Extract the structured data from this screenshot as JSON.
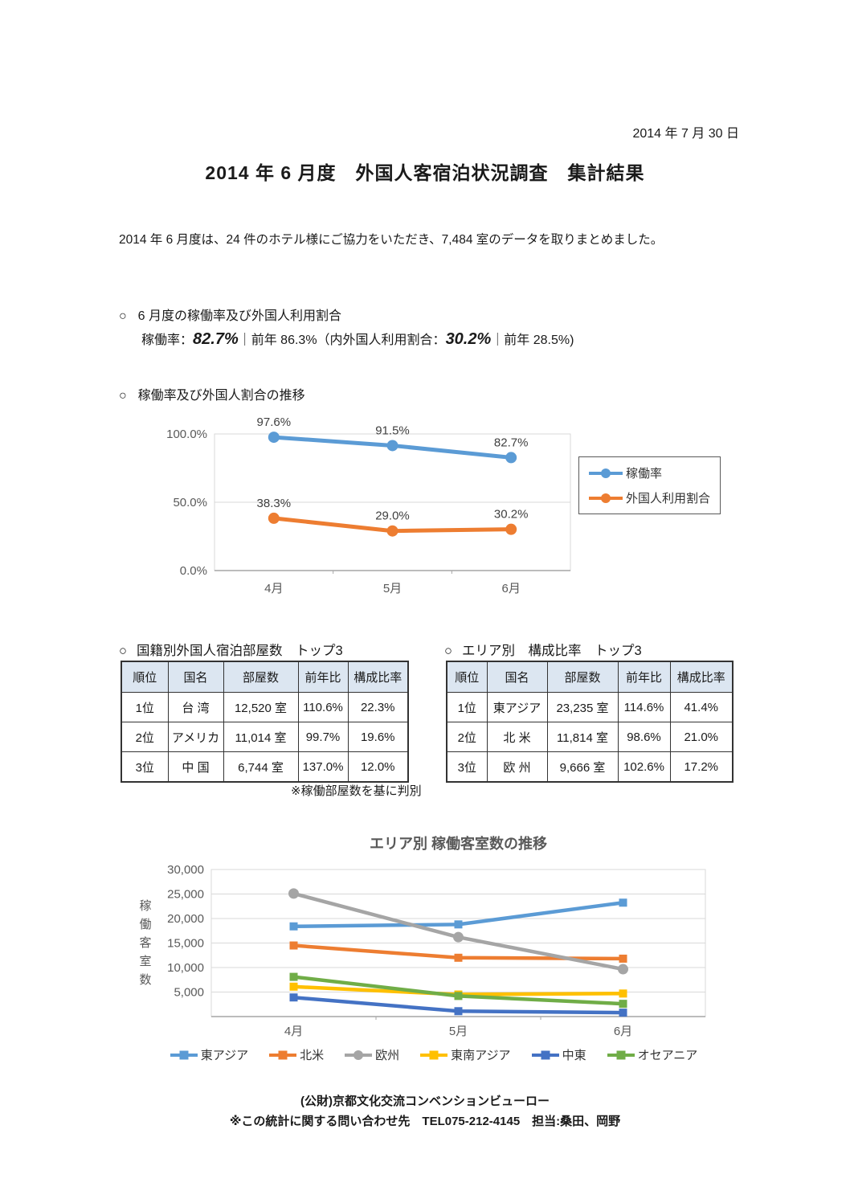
{
  "page": {
    "date": "2014 年 7 月 30 日",
    "title": "2014 年 6 月度　外国人客宿泊状況調査　集計結果",
    "intro": "2014 年 6 月度は、24 件のホテル様にご協力をいただき、7,484 室のデータを取りまとめました。"
  },
  "sections": {
    "occupancy": {
      "bullet": "○",
      "heading": "6 月度の稼働率及び外国人利用割合"
    },
    "trend": {
      "bullet": "○",
      "heading": "稼働率及び外国人割合の推移"
    },
    "nationality": {
      "bullet": "○",
      "heading": "国籍別外国人宿泊部屋数　トップ3"
    },
    "area": {
      "bullet": "○",
      "heading": "エリア別　構成比率　トップ3"
    }
  },
  "rate_line": {
    "label": "稼働率：",
    "current": "82.7%",
    "mid": "｜前年 86.3%（内外国人利用割合：",
    "foreign": "30.2%",
    "tail": "｜前年 28.5%)"
  },
  "tables": {
    "nationality": {
      "headers": [
        "順位",
        "国名",
        "部屋数",
        "前年比",
        "構成比率"
      ],
      "rows": [
        [
          "1位",
          "台 湾",
          "12,520 室",
          "110.6%",
          "22.3%"
        ],
        [
          "2位",
          "アメリカ",
          "11,014 室",
          "99.7%",
          "19.6%"
        ],
        [
          "3位",
          "中 国",
          "6,744 室",
          "137.0%",
          "12.0%"
        ]
      ],
      "note": "※稼働部屋数を基に判別"
    },
    "area": {
      "headers": [
        "順位",
        "国名",
        "部屋数",
        "前年比",
        "構成比率"
      ],
      "rows": [
        [
          "1位",
          "東アジア",
          "23,235 室",
          "114.6%",
          "41.4%"
        ],
        [
          "2位",
          "北 米",
          "11,814 室",
          "98.6%",
          "21.0%"
        ],
        [
          "3位",
          "欧 州",
          "9,666 室",
          "102.6%",
          "17.2%"
        ]
      ]
    }
  },
  "chart_data": [
    {
      "type": "line",
      "title": "",
      "categories": [
        "4月",
        "5月",
        "6月"
      ],
      "yticks": [
        "100.0%",
        "50.0%",
        "0.0%"
      ],
      "ylim": [
        0,
        100
      ],
      "grid": true,
      "legend_position": "right",
      "series": [
        {
          "name": "稼働率",
          "color": "#5B9BD5",
          "marker": "circle",
          "values": [
            97.6,
            91.5,
            82.7
          ],
          "labels": [
            "97.6%",
            "91.5%",
            "82.7%"
          ]
        },
        {
          "name": "外国人利用割合",
          "color": "#ED7D31",
          "marker": "circle",
          "values": [
            38.3,
            29.0,
            30.2
          ],
          "labels": [
            "38.3%",
            "29.0%",
            "30.2%"
          ]
        }
      ]
    },
    {
      "type": "line",
      "title": "エリア別 稼働客室数の推移",
      "ylabel": "稼働客室数",
      "categories": [
        "4月",
        "5月",
        "6月"
      ],
      "yticks": [
        "30,000",
        "25,000",
        "20,000",
        "15,000",
        "10,000",
        "5,000"
      ],
      "ylim": [
        0,
        30000
      ],
      "grid": true,
      "legend_position": "bottom",
      "series": [
        {
          "name": "東アジア",
          "color": "#5B9BD5",
          "marker": "square",
          "values": [
            18400,
            18800,
            23235
          ]
        },
        {
          "name": "北米",
          "color": "#ED7D31",
          "marker": "square",
          "values": [
            14500,
            12000,
            11814
          ]
        },
        {
          "name": "欧州",
          "color": "#A5A5A5",
          "marker": "circle",
          "values": [
            25100,
            16200,
            9666
          ]
        },
        {
          "name": "東南アジア",
          "color": "#FFC000",
          "marker": "square",
          "values": [
            6100,
            4500,
            4700
          ]
        },
        {
          "name": "中東",
          "color": "#4472C4",
          "marker": "square",
          "values": [
            3900,
            1100,
            800
          ]
        },
        {
          "name": "オセアニア",
          "color": "#70AD47",
          "marker": "square",
          "values": [
            8100,
            4200,
            2600
          ]
        }
      ]
    }
  ],
  "footer": {
    "line1": "(公財)京都文化交流コンベンションビューロー",
    "line2": "※この統計に関する問い合わせ先　TEL075-212-4145　担当:桑田、岡野"
  },
  "colors": {
    "accent_blue": "#5B9BD5",
    "accent_orange": "#ED7D31",
    "accent_gray": "#A5A5A5",
    "accent_yellow": "#FFC000",
    "accent_dark_blue": "#4472C4",
    "accent_green": "#70AD47",
    "table_header_bg": "#DCE6F1",
    "axis_text": "#595959",
    "gridline": "#D9D9D9"
  }
}
